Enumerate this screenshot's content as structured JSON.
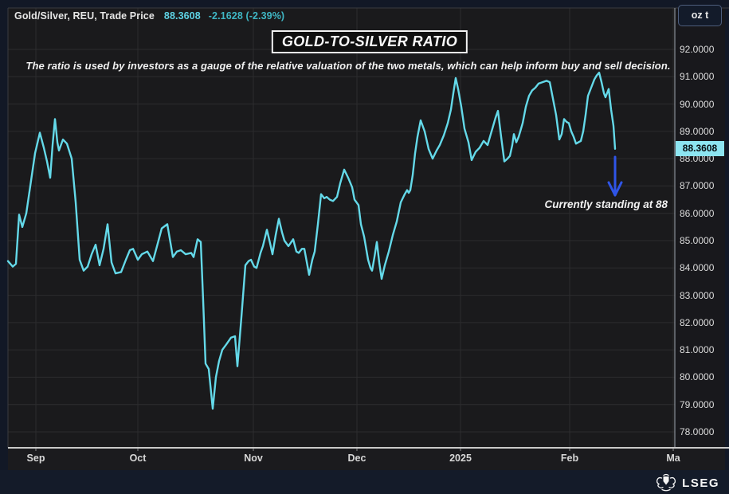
{
  "header": {
    "instrument": "Gold/Silver, REU, Trade Price",
    "price": "88.3608",
    "change": "-2.1628 (-2.39%)"
  },
  "unit_badge": {
    "label": "oz t"
  },
  "title": {
    "text": "GOLD-TO-SILVER RATIO"
  },
  "subtitle": {
    "text": "The ratio is used by investors as a gauge of the relative valuation of the two metals, which can help inform buy and sell decision."
  },
  "annotation": {
    "text": "Currently standing at 88"
  },
  "last_price_badge": {
    "label": "88.3608"
  },
  "footer": {
    "brand": "LSEG"
  },
  "colors": {
    "line": "#64d9e9",
    "price_text": "#5ed2e4",
    "change_text": "#3fb6c4",
    "arrow": "#2f55e8",
    "badge_bg": "#8de5f1",
    "grid": "#2c2c2e",
    "axis_bright": "#c9c9c9",
    "axis_vline": "#8a8f98",
    "border": "#3b3b40",
    "plot_bg": "#1a1a1c"
  },
  "chart_data": {
    "type": "line",
    "title": "GOLD-TO-SILVER RATIO",
    "series_name": "Gold/Silver ratio, Trade Price (oz t)",
    "x_axis": {
      "labels": [
        "Sep",
        "Oct",
        "Nov",
        "Dec",
        "2025",
        "Feb",
        "Ma"
      ]
    },
    "y_axis": {
      "min": 78,
      "max": 92,
      "tick_step": 1,
      "tick_decimals": 4
    },
    "last_value": 88.3608,
    "points": [
      [
        10,
        84.25
      ],
      [
        16,
        84.05
      ],
      [
        20,
        84.15
      ],
      [
        24,
        85.95
      ],
      [
        28,
        85.5
      ],
      [
        33,
        86.0
      ],
      [
        38,
        87.0
      ],
      [
        44,
        88.2
      ],
      [
        50,
        88.95
      ],
      [
        55,
        88.4
      ],
      [
        59,
        87.9
      ],
      [
        63,
        87.3
      ],
      [
        66,
        88.5
      ],
      [
        69,
        89.45
      ],
      [
        72,
        88.6
      ],
      [
        74,
        88.3
      ],
      [
        79,
        88.7
      ],
      [
        84,
        88.55
      ],
      [
        90,
        88.0
      ],
      [
        95,
        86.4
      ],
      [
        100,
        84.3
      ],
      [
        105,
        83.9
      ],
      [
        110,
        84.05
      ],
      [
        115,
        84.5
      ],
      [
        120,
        84.85
      ],
      [
        125,
        84.1
      ],
      [
        130,
        84.7
      ],
      [
        135,
        85.6
      ],
      [
        140,
        84.2
      ],
      [
        145,
        83.8
      ],
      [
        152,
        83.85
      ],
      [
        158,
        84.3
      ],
      [
        163,
        84.65
      ],
      [
        167,
        84.7
      ],
      [
        173,
        84.3
      ],
      [
        178,
        84.5
      ],
      [
        185,
        84.6
      ],
      [
        192,
        84.25
      ],
      [
        198,
        84.9
      ],
      [
        203,
        85.45
      ],
      [
        210,
        85.6
      ],
      [
        217,
        84.4
      ],
      [
        222,
        84.6
      ],
      [
        227,
        84.65
      ],
      [
        233,
        84.5
      ],
      [
        240,
        84.55
      ],
      [
        243,
        84.4
      ],
      [
        248,
        85.05
      ],
      [
        252,
        84.95
      ],
      [
        255,
        82.8
      ],
      [
        258,
        80.5
      ],
      [
        262,
        80.3
      ],
      [
        267,
        78.85
      ],
      [
        271,
        80.0
      ],
      [
        275,
        80.6
      ],
      [
        279,
        81.0
      ],
      [
        284,
        81.2
      ],
      [
        290,
        81.45
      ],
      [
        295,
        81.5
      ],
      [
        298,
        80.4
      ],
      [
        303,
        82.2
      ],
      [
        308,
        84.1
      ],
      [
        312,
        84.25
      ],
      [
        315,
        84.3
      ],
      [
        319,
        84.05
      ],
      [
        322,
        84.0
      ],
      [
        327,
        84.55
      ],
      [
        330,
        84.8
      ],
      [
        335,
        85.4
      ],
      [
        339,
        84.9
      ],
      [
        342,
        84.5
      ],
      [
        346,
        85.2
      ],
      [
        350,
        85.8
      ],
      [
        354,
        85.3
      ],
      [
        357,
        85.0
      ],
      [
        362,
        84.8
      ],
      [
        368,
        85.05
      ],
      [
        372,
        84.6
      ],
      [
        375,
        84.55
      ],
      [
        379,
        84.7
      ],
      [
        382,
        84.7
      ],
      [
        388,
        83.75
      ],
      [
        392,
        84.3
      ],
      [
        395,
        84.6
      ],
      [
        399,
        85.6
      ],
      [
        403,
        86.7
      ],
      [
        407,
        86.55
      ],
      [
        410,
        86.6
      ],
      [
        414,
        86.5
      ],
      [
        418,
        86.45
      ],
      [
        423,
        86.6
      ],
      [
        427,
        87.1
      ],
      [
        432,
        87.6
      ],
      [
        437,
        87.3
      ],
      [
        442,
        86.95
      ],
      [
        445,
        86.5
      ],
      [
        450,
        86.3
      ],
      [
        453,
        85.6
      ],
      [
        457,
        85.15
      ],
      [
        462,
        84.3
      ],
      [
        465,
        84.0
      ],
      [
        467,
        83.9
      ],
      [
        470,
        84.4
      ],
      [
        473,
        84.95
      ],
      [
        476,
        84.2
      ],
      [
        479,
        83.6
      ],
      [
        483,
        84.1
      ],
      [
        488,
        84.6
      ],
      [
        493,
        85.2
      ],
      [
        498,
        85.7
      ],
      [
        503,
        86.4
      ],
      [
        508,
        86.7
      ],
      [
        511,
        86.85
      ],
      [
        513,
        86.75
      ],
      [
        515,
        86.85
      ],
      [
        518,
        87.4
      ],
      [
        521,
        88.2
      ],
      [
        524,
        88.8
      ],
      [
        528,
        89.4
      ],
      [
        533,
        89.0
      ],
      [
        538,
        88.35
      ],
      [
        543,
        88.0
      ],
      [
        548,
        88.3
      ],
      [
        552,
        88.5
      ],
      [
        557,
        88.85
      ],
      [
        562,
        89.3
      ],
      [
        566,
        89.8
      ],
      [
        569,
        90.4
      ],
      [
        572,
        90.95
      ],
      [
        575,
        90.55
      ],
      [
        579,
        89.9
      ],
      [
        583,
        89.1
      ],
      [
        588,
        88.6
      ],
      [
        592,
        87.95
      ],
      [
        597,
        88.25
      ],
      [
        602,
        88.4
      ],
      [
        607,
        88.65
      ],
      [
        612,
        88.5
      ],
      [
        615,
        88.8
      ],
      [
        619,
        89.2
      ],
      [
        622,
        89.5
      ],
      [
        625,
        89.75
      ],
      [
        629,
        88.8
      ],
      [
        633,
        87.9
      ],
      [
        637,
        88.0
      ],
      [
        640,
        88.1
      ],
      [
        643,
        88.5
      ],
      [
        645,
        88.9
      ],
      [
        648,
        88.6
      ],
      [
        651,
        88.8
      ],
      [
        653,
        89.0
      ],
      [
        656,
        89.3
      ],
      [
        660,
        89.9
      ],
      [
        664,
        90.3
      ],
      [
        668,
        90.5
      ],
      [
        672,
        90.6
      ],
      [
        676,
        90.75
      ],
      [
        681,
        90.8
      ],
      [
        686,
        90.85
      ],
      [
        690,
        90.8
      ],
      [
        694,
        90.2
      ],
      [
        698,
        89.6
      ],
      [
        702,
        88.7
      ],
      [
        705,
        88.9
      ],
      [
        708,
        89.45
      ],
      [
        711,
        89.35
      ],
      [
        714,
        89.3
      ],
      [
        717,
        89.0
      ],
      [
        720,
        88.8
      ],
      [
        723,
        88.55
      ],
      [
        726,
        88.6
      ],
      [
        729,
        88.65
      ],
      [
        732,
        89.0
      ],
      [
        735,
        89.6
      ],
      [
        738,
        90.3
      ],
      [
        742,
        90.6
      ],
      [
        746,
        90.9
      ],
      [
        749,
        91.05
      ],
      [
        752,
        91.15
      ],
      [
        755,
        90.8
      ],
      [
        758,
        90.4
      ],
      [
        760,
        90.25
      ],
      [
        764,
        90.55
      ],
      [
        767,
        89.8
      ],
      [
        770,
        89.2
      ],
      [
        772,
        88.36
      ]
    ]
  }
}
